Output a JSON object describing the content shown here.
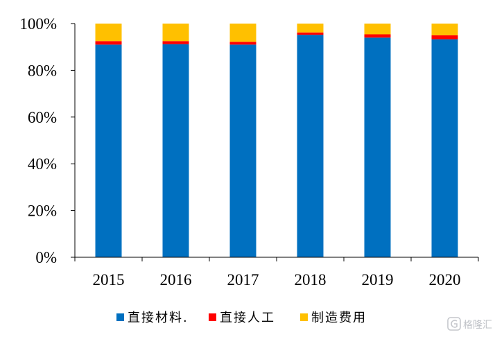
{
  "chart_data": {
    "type": "bar",
    "stacked": true,
    "categories": [
      "2015",
      "2016",
      "2017",
      "2018",
      "2019",
      "2020"
    ],
    "series": [
      {
        "name": "直接材料.",
        "color": "#0070C0",
        "values": [
          91.0,
          91.2,
          91.0,
          95.2,
          94.0,
          93.3
        ]
      },
      {
        "name": "直接人工",
        "color": "#FF0000",
        "values": [
          1.5,
          1.3,
          1.2,
          1.0,
          1.4,
          1.7
        ]
      },
      {
        "name": "制造费用",
        "color": "#FFC000",
        "values": [
          7.5,
          7.5,
          7.8,
          3.8,
          4.6,
          5.0
        ]
      }
    ],
    "ylim": [
      0,
      100
    ],
    "yticks": [
      "0%",
      "20%",
      "40%",
      "60%",
      "80%",
      "100%"
    ],
    "ytick_values": [
      0,
      20,
      40,
      60,
      80,
      100
    ],
    "grid": false,
    "legend_position": "bottom"
  },
  "watermark": {
    "icon": "gelonghui-logo-icon",
    "text": "格隆汇"
  }
}
